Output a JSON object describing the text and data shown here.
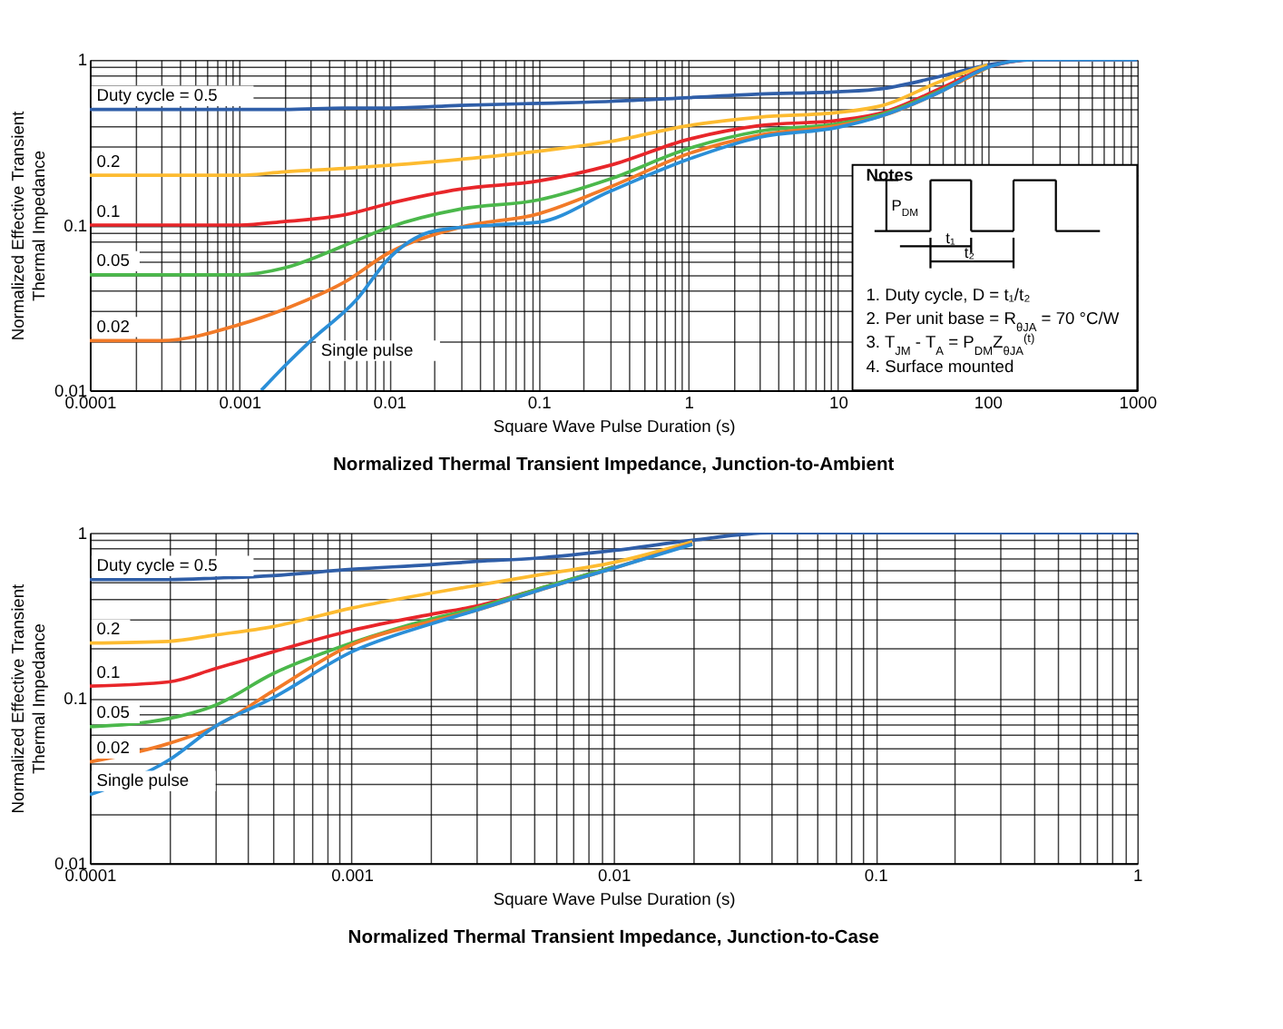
{
  "chart_data": [
    {
      "type": "line",
      "title": "Normalized Thermal Transient Impedance, Junction-to-Ambient",
      "xlabel": "Square Wave Pulse Duration (s)",
      "ylabel": "Normalized Effective Transient\nThermal Impedance",
      "log": "xy",
      "grid": true,
      "legend": false,
      "xlim": [
        0.0001,
        1000
      ],
      "ylim": [
        0.01,
        1
      ],
      "xticks": [
        0.0001,
        {
          "value": 0.0002,
          "label": null
        },
        {
          "value": 0.0003,
          "label": null
        },
        {
          "value": 0.0004,
          "label": null
        },
        {
          "value": 0.0005,
          "label": null
        },
        {
          "value": 0.0006,
          "label": null
        },
        {
          "value": 0.0007,
          "label": null
        },
        {
          "value": 0.0008,
          "label": null
        },
        {
          "value": 0.0009,
          "label": null
        },
        0.001,
        {
          "value": 0.002,
          "label": null
        },
        {
          "value": 0.003,
          "label": null
        },
        {
          "value": 0.004,
          "label": null
        },
        {
          "value": 0.005,
          "label": null
        },
        {
          "value": 0.006,
          "label": null
        },
        {
          "value": 0.007,
          "label": null
        },
        {
          "value": 0.008,
          "label": null
        },
        {
          "value": 0.009,
          "label": null
        },
        0.01,
        {
          "value": 0.02,
          "label": null
        },
        {
          "value": 0.03,
          "label": null
        },
        {
          "value": 0.04,
          "label": null
        },
        {
          "value": 0.05,
          "label": null
        },
        {
          "value": 0.06,
          "label": null
        },
        {
          "value": 0.07,
          "label": null
        },
        {
          "value": 0.08,
          "label": null
        },
        {
          "value": 0.09,
          "label": null
        },
        0.1,
        {
          "value": 0.2,
          "label": null
        },
        {
          "value": 0.3,
          "label": null
        },
        {
          "value": 0.4,
          "label": null
        },
        {
          "value": 0.5,
          "label": null
        },
        {
          "value": 0.6,
          "label": null
        },
        {
          "value": 0.7,
          "label": null
        },
        {
          "value": 0.8,
          "label": null
        },
        {
          "value": 0.9,
          "label": null
        },
        1,
        {
          "value": 2,
          "label": null
        },
        {
          "value": 3,
          "label": null
        },
        {
          "value": 4,
          "label": null
        },
        {
          "value": 5,
          "label": null
        },
        {
          "value": 6,
          "label": null
        },
        {
          "value": 7,
          "label": null
        },
        {
          "value": 8,
          "label": null
        },
        {
          "value": 9,
          "label": null
        },
        10,
        {
          "value": 20,
          "label": null
        },
        {
          "value": 30,
          "label": null
        },
        {
          "value": 40,
          "label": null
        },
        {
          "value": 50,
          "label": null
        },
        {
          "value": 60,
          "label": null
        },
        {
          "value": 70,
          "label": null
        },
        {
          "value": 80,
          "label": null
        },
        {
          "value": 90,
          "label": null
        },
        100,
        {
          "value": 200,
          "label": null
        },
        {
          "value": 300,
          "label": null
        },
        {
          "value": 400,
          "label": null
        },
        {
          "value": 500,
          "label": null
        },
        {
          "value": 600,
          "label": null
        },
        {
          "value": 700,
          "label": null
        },
        {
          "value": 800,
          "label": null
        },
        {
          "value": 900,
          "label": null
        },
        1000
      ],
      "yticks": [
        0.01,
        {
          "value": 0.02,
          "label": null
        },
        {
          "value": 0.03,
          "label": null
        },
        {
          "value": 0.04,
          "label": null
        },
        {
          "value": 0.05,
          "label": null
        },
        {
          "value": 0.06,
          "label": null
        },
        {
          "value": 0.07,
          "label": null
        },
        {
          "value": 0.08,
          "label": null
        },
        {
          "value": 0.09,
          "label": null
        },
        0.1,
        {
          "value": 0.2,
          "label": null
        },
        {
          "value": 0.3,
          "label": null
        },
        {
          "value": 0.4,
          "label": null
        },
        {
          "value": 0.5,
          "label": null
        },
        {
          "value": 0.6,
          "label": null
        },
        {
          "value": 0.7,
          "label": null
        },
        {
          "value": 0.8,
          "label": null
        },
        {
          "value": 0.9,
          "label": null
        },
        1
      ],
      "x": [
        0.0001,
        0.0003,
        0.001,
        0.002,
        0.005,
        0.01,
        0.03,
        0.1,
        0.3,
        1,
        3,
        10,
        20,
        50,
        100,
        200,
        1000
      ],
      "series": [
        {
          "name": "Duty cycle = 0.5",
          "color": "#2f5ea8",
          "values": [
            0.5,
            0.5,
            0.5,
            0.5,
            0.51,
            0.51,
            0.53,
            0.545,
            0.56,
            0.59,
            0.62,
            0.64,
            0.67,
            0.8,
            0.93,
            1,
            1
          ]
        },
        {
          "name": "0.2",
          "color": "#fdbb30",
          "values": [
            0.2,
            0.2,
            0.2,
            0.21,
            0.22,
            0.23,
            0.25,
            0.28,
            0.32,
            0.4,
            0.45,
            0.48,
            0.53,
            0.75,
            0.93,
            null,
            null
          ]
        },
        {
          "name": "0.1",
          "color": "#e8262a",
          "values": [
            0.1,
            0.1,
            0.1,
            0.105,
            0.115,
            0.135,
            0.165,
            0.185,
            0.23,
            0.33,
            0.4,
            0.43,
            0.48,
            0.68,
            0.9,
            1,
            1
          ]
        },
        {
          "name": "0.05",
          "color": "#4bb84b",
          "values": [
            0.05,
            0.05,
            0.05,
            0.055,
            0.075,
            0.097,
            0.125,
            0.142,
            0.19,
            0.29,
            0.37,
            0.41,
            0.47,
            0.66,
            0.9,
            null,
            null
          ]
        },
        {
          "name": "0.02",
          "color": "#f27a28",
          "values": [
            0.02,
            0.02,
            0.025,
            0.031,
            0.045,
            0.068,
            0.097,
            0.117,
            0.17,
            0.27,
            0.35,
            0.4,
            0.46,
            0.65,
            0.9,
            null,
            null
          ]
        },
        {
          "name": "Single pulse",
          "color": "#2b8fd8",
          "x": [
            0.0014,
            0.002,
            0.003,
            0.006,
            0.01,
            0.02,
            0.05,
            0.1,
            0.3,
            1,
            3,
            10,
            20,
            50,
            100,
            200,
            1000
          ],
          "values": [
            0.01,
            0.014,
            0.02,
            0.035,
            0.063,
            0.092,
            0.1,
            0.104,
            0.16,
            0.25,
            0.34,
            0.39,
            0.46,
            0.65,
            0.9,
            1,
            1
          ]
        }
      ],
      "annotations": [
        "Notes",
        "P$_{DM}$",
        "t₁",
        "t₂",
        "1. Duty cycle, D = t₁/t₂",
        "2. Per unit base = R$_{θJA}$ = 70 °C/W",
        "3. T$_{JM}$ - T$_{A}$ = P$_{DM}$Z$_{θJA}$$^{(t)}$",
        "4. Surface mounted"
      ]
    },
    {
      "type": "line",
      "title": "Normalized Thermal Transient Impedance, Junction-to-Case",
      "xlabel": "Square Wave Pulse Duration (s)",
      "ylabel": "Normalized Effective Transient\nThermal Impedance",
      "log": "xy",
      "grid": true,
      "legend": false,
      "xlim": [
        0.0001,
        1
      ],
      "ylim": [
        0.01,
        1
      ],
      "xticks": [
        0.0001,
        {
          "value": 0.0002,
          "label": null
        },
        {
          "value": 0.0003,
          "label": null
        },
        {
          "value": 0.0004,
          "label": null
        },
        {
          "value": 0.0005,
          "label": null
        },
        {
          "value": 0.0006,
          "label": null
        },
        {
          "value": 0.0007,
          "label": null
        },
        {
          "value": 0.0008,
          "label": null
        },
        {
          "value": 0.0009,
          "label": null
        },
        0.001,
        {
          "value": 0.002,
          "label": null
        },
        {
          "value": 0.003,
          "label": null
        },
        {
          "value": 0.004,
          "label": null
        },
        {
          "value": 0.005,
          "label": null
        },
        {
          "value": 0.006,
          "label": null
        },
        {
          "value": 0.007,
          "label": null
        },
        {
          "value": 0.008,
          "label": null
        },
        {
          "value": 0.009,
          "label": null
        },
        0.01,
        {
          "value": 0.02,
          "label": null
        },
        {
          "value": 0.03,
          "label": null
        },
        {
          "value": 0.04,
          "label": null
        },
        {
          "value": 0.05,
          "label": null
        },
        {
          "value": 0.06,
          "label": null
        },
        {
          "value": 0.07,
          "label": null
        },
        {
          "value": 0.08,
          "label": null
        },
        {
          "value": 0.09,
          "label": null
        },
        0.1,
        {
          "value": 0.2,
          "label": null
        },
        {
          "value": 0.3,
          "label": null
        },
        {
          "value": 0.4,
          "label": null
        },
        {
          "value": 0.5,
          "label": null
        },
        {
          "value": 0.6,
          "label": null
        },
        {
          "value": 0.7,
          "label": null
        },
        {
          "value": 0.8,
          "label": null
        },
        {
          "value": 0.9,
          "label": null
        },
        1
      ],
      "yticks": [
        0.01,
        {
          "value": 0.02,
          "label": null
        },
        {
          "value": 0.03,
          "label": null
        },
        {
          "value": 0.04,
          "label": null
        },
        {
          "value": 0.05,
          "label": null
        },
        {
          "value": 0.06,
          "label": null
        },
        {
          "value": 0.07,
          "label": null
        },
        {
          "value": 0.08,
          "label": null
        },
        {
          "value": 0.09,
          "label": null
        },
        0.1,
        {
          "value": 0.2,
          "label": null
        },
        {
          "value": 0.3,
          "label": null
        },
        {
          "value": 0.4,
          "label": null
        },
        {
          "value": 0.5,
          "label": null
        },
        {
          "value": 0.6,
          "label": null
        },
        {
          "value": 0.7,
          "label": null
        },
        {
          "value": 0.8,
          "label": null
        },
        {
          "value": 0.9,
          "label": null
        },
        1
      ],
      "x": [
        0.0001,
        0.0002,
        0.0003,
        0.0005,
        0.001,
        0.002,
        0.003,
        0.005,
        0.01,
        0.02,
        0.04,
        0.1,
        1
      ],
      "series": [
        {
          "name": "Duty cycle = 0.5",
          "color": "#2f5ea8",
          "values": [
            0.52,
            0.52,
            0.53,
            0.55,
            0.6,
            0.64,
            0.67,
            0.7,
            0.78,
            0.9,
            1,
            1,
            1
          ]
        },
        {
          "name": "0.2",
          "color": "#fdbb30",
          "values": [
            0.215,
            0.22,
            0.24,
            0.27,
            0.35,
            0.43,
            0.48,
            0.55,
            0.66,
            0.88,
            null,
            null,
            null
          ]
        },
        {
          "name": "0.1",
          "color": "#e8262a",
          "values": [
            0.118,
            0.125,
            0.15,
            0.19,
            0.256,
            0.32,
            0.36,
            0.45,
            0.62,
            null,
            null,
            null,
            null
          ]
        },
        {
          "name": "0.05",
          "color": "#4bb84b",
          "values": [
            0.067,
            0.075,
            0.09,
            0.14,
            0.215,
            0.3,
            0.35,
            0.45,
            0.62,
            null,
            null,
            null,
            null
          ]
        },
        {
          "name": "0.02",
          "color": "#f27a28",
          "values": [
            0.041,
            0.053,
            0.067,
            0.11,
            0.21,
            0.29,
            0.34,
            0.44,
            0.61,
            0.86,
            null,
            null,
            null
          ]
        },
        {
          "name": "Single pulse",
          "color": "#2b8fd8",
          "values": [
            0.026,
            0.042,
            0.067,
            0.1,
            0.19,
            0.28,
            0.34,
            0.44,
            0.61,
            0.85,
            null,
            null,
            null
          ]
        }
      ]
    }
  ]
}
